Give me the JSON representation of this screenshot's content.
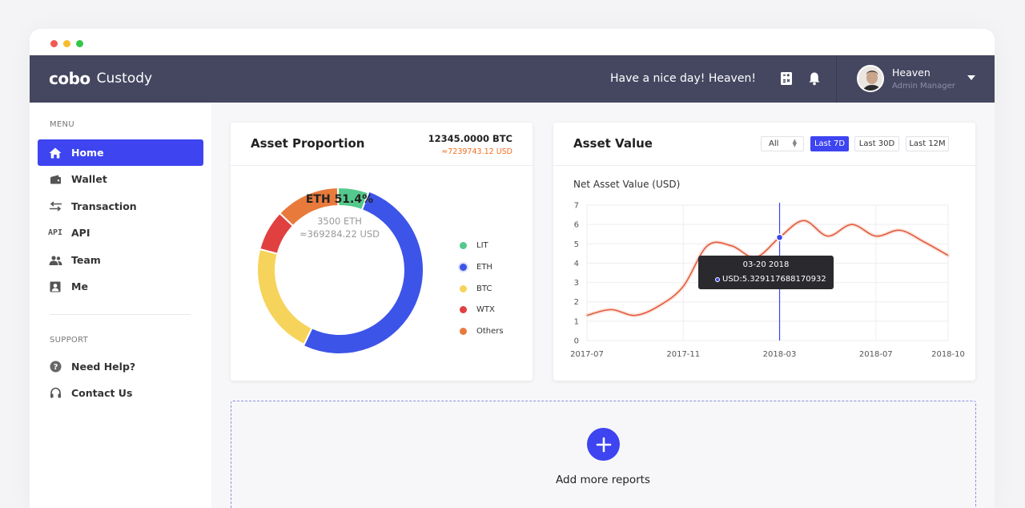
{
  "window": {
    "controls": [
      "close",
      "minimize",
      "maximize"
    ]
  },
  "topbar": {
    "logo_mark": "cobo",
    "logo_text": "Custody",
    "greeting": "Have a nice day! Heaven!",
    "icons": [
      "calculator-icon",
      "bell-icon"
    ],
    "user": {
      "name": "Heaven",
      "role": "Admin Manager"
    }
  },
  "sidebar": {
    "menu_label": "MENU",
    "menu_items": [
      {
        "label": "Home",
        "icon": "home-icon",
        "active": true
      },
      {
        "label": "Wallet",
        "icon": "wallet-icon",
        "active": false
      },
      {
        "label": "Transaction",
        "icon": "transfer-icon",
        "active": false
      },
      {
        "label": "API",
        "icon": "api-icon",
        "active": false
      },
      {
        "label": "Team",
        "icon": "team-icon",
        "active": false
      },
      {
        "label": "Me",
        "icon": "profile-icon",
        "active": false
      }
    ],
    "support_label": "SUPPORT",
    "support_items": [
      {
        "label": "Need Help?",
        "icon": "help-icon"
      },
      {
        "label": "Contact Us",
        "icon": "headset-icon"
      }
    ]
  },
  "asset_proportion": {
    "title": "Asset Proportion",
    "total_btc": "12345.0000 BTC",
    "total_usd": "≈7239743.12 USD",
    "center": {
      "title": "ETH  51.4%",
      "amount": "3500 ETH",
      "usd": "≈369284.22 USD"
    },
    "legend": [
      {
        "label": "LIT",
        "color": "#54c98c"
      },
      {
        "label": "ETH",
        "color": "#3d54e8"
      },
      {
        "label": "BTC",
        "color": "#f6d35a"
      },
      {
        "label": "WTX",
        "color": "#e0403f"
      },
      {
        "label": "Others",
        "color": "#e87a3c"
      }
    ],
    "colors": {
      "accent": "#3d44f0",
      "usd_text": "#f26d21"
    }
  },
  "asset_value": {
    "title": "Asset Value",
    "range_select": "All",
    "range_buttons": [
      {
        "label": "Last 7D",
        "active": true
      },
      {
        "label": "Last 30D",
        "active": false
      },
      {
        "label": "Last 12M",
        "active": false
      }
    ],
    "tooltip": {
      "date": "03-20 2018",
      "value": "USD:5.329117688170932"
    }
  },
  "add_reports": {
    "label": "Add more reports"
  },
  "chart_data": [
    {
      "type": "pie",
      "categories": [
        "LIT",
        "ETH",
        "BTC",
        "WTX",
        "Others"
      ],
      "values": [
        6,
        51.4,
        22,
        8,
        12.6
      ],
      "colors": [
        "#54c98c",
        "#3d54e8",
        "#f6d35a",
        "#e0403f",
        "#e87a3c"
      ]
    },
    {
      "type": "line",
      "title": "Net Asset Value (USD)",
      "x_ticks": [
        "2017-07",
        "2017-11",
        "2018-03",
        "2018-07",
        "2018-10"
      ],
      "y_ticks": [
        "0",
        "1",
        "2",
        "3",
        "4",
        "5",
        "6",
        "7"
      ],
      "ylim": [
        0,
        7
      ],
      "xlim": [
        "2017-07",
        "2018-10"
      ],
      "series": [
        {
          "color": "#e35b3a",
          "points": [
            [
              "2017-07",
              1.3
            ],
            [
              "2017-08",
              1.6
            ],
            [
              "2017-09",
              1.3
            ],
            [
              "2017-10",
              1.8
            ],
            [
              "2017-11",
              2.8
            ],
            [
              "2017-12",
              4.9
            ],
            [
              "2018-01",
              4.9
            ],
            [
              "2018-02",
              4.3
            ],
            [
              "2018-03",
              5.33
            ],
            [
              "2018-04",
              6.2
            ],
            [
              "2018-05",
              5.4
            ],
            [
              "2018-06",
              6.0
            ],
            [
              "2018-07",
              5.4
            ],
            [
              "2018-08",
              5.7
            ],
            [
              "2018-09",
              5.1
            ],
            [
              "2018-10",
              4.4
            ]
          ]
        }
      ],
      "grid": true,
      "highlight_x": "2018-03"
    }
  ]
}
